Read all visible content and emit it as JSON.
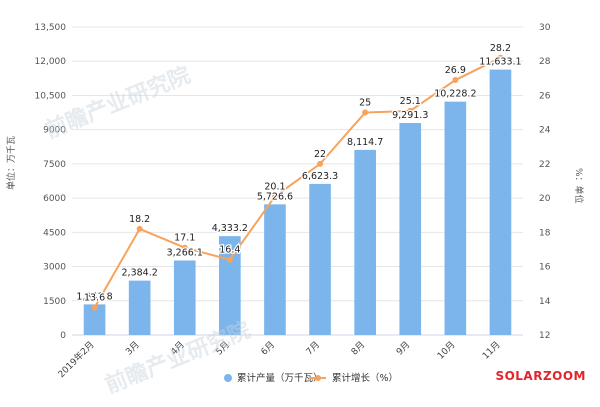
{
  "watermark_text": "前瞻产业研究院",
  "brand": "SOLARZOOM",
  "chart_data": {
    "type": "bar+line",
    "categories": [
      "2019年2月",
      "3月",
      "4月",
      "5月",
      "6月",
      "7月",
      "8月",
      "9月",
      "10月",
      "11月"
    ],
    "series": [
      {
        "name": "累计产量（万千瓦）",
        "type": "bar",
        "axis": "left",
        "color": "#7cb5ec",
        "values": [
          1341.8,
          2384.2,
          3266.1,
          4333.2,
          5726.6,
          6623.3,
          8114.7,
          9291.3,
          10228.2,
          11633.1
        ],
        "labels": [
          "1,341.8",
          "2,384.2",
          "3,266.1",
          "4,333.2",
          "5,726.6",
          "6,623.3",
          "8,114.7",
          "9,291.3",
          "10,228.2",
          "11,633.1"
        ]
      },
      {
        "name": "累计增长（%）",
        "type": "line",
        "axis": "right",
        "color": "#f7a35c",
        "values": [
          13.6,
          18.2,
          17.1,
          16.4,
          20.1,
          22,
          25,
          25.1,
          26.9,
          28.2
        ],
        "labels": [
          "13.6",
          "18.2",
          "17.1",
          "16.4",
          "20.1",
          "22",
          "25",
          "25.1",
          "26.9",
          "28.2"
        ]
      }
    ],
    "y_left": {
      "label": "单位：万千瓦",
      "min": 0,
      "max": 13500,
      "ticks": [
        0,
        1500,
        3000,
        4500,
        6000,
        7500,
        9000,
        10500,
        12000,
        13500
      ],
      "tick_labels": [
        "0",
        "1500",
        "3000",
        "4500",
        "6000",
        "7500",
        "9000",
        "10,500",
        "12,000",
        "13,500"
      ]
    },
    "y_right": {
      "label": "%：单位",
      "min": 12,
      "max": 30,
      "ticks": [
        12,
        14,
        16,
        18,
        20,
        22,
        24,
        26,
        28,
        30
      ],
      "tick_labels": [
        "12",
        "14",
        "16",
        "18",
        "20",
        "22",
        "24",
        "26",
        "28",
        "30"
      ]
    },
    "grid": true,
    "legend_position": "bottom"
  }
}
